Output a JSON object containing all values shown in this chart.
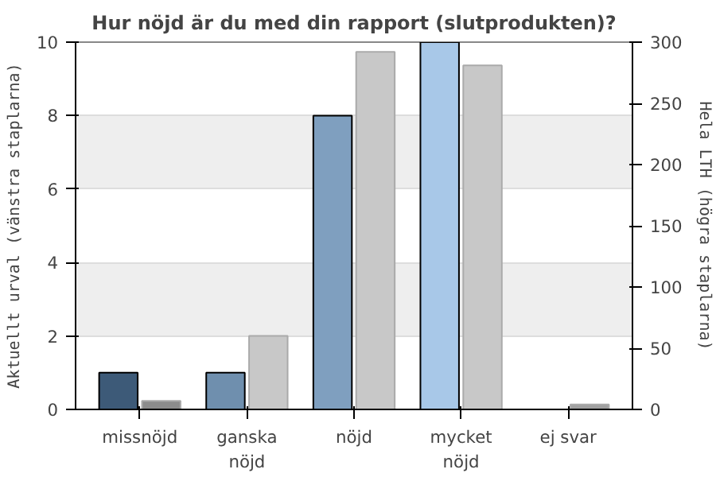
{
  "chart_data": {
    "type": "bar",
    "title": "Hur nöjd är du med din rapport (slutprodukten)?",
    "ylabel": "Aktuellt urval (vänstra staplarna)",
    "y2label": "Hela LTH (högra staplarna)",
    "categories": [
      "missnöjd",
      "ganska\nnöjd",
      "nöjd",
      "mycket\nnöjd",
      "ej svar"
    ],
    "series": [
      {
        "colors": [
          "#3d5a78",
          "#6f8fae",
          "#7f9fbf",
          "#a8c8e8",
          "#a8c8e8"
        ],
        "values": [
          1,
          1,
          8,
          10,
          null
        ]
      },
      {
        "axis": "y2",
        "colors": [
          "#8c8c8c",
          "#c8c8c8",
          "#c8c8c8",
          "#c8c8c8",
          "#a0a0a0"
        ],
        "values": [
          7,
          60,
          292,
          281,
          4
        ]
      }
    ],
    "ylim": [
      0,
      10
    ],
    "yticks": [
      0,
      2,
      4,
      6,
      8,
      10
    ],
    "y2lim": [
      0,
      300
    ],
    "y2ticks": [
      0,
      50,
      100,
      150,
      200,
      250,
      300
    ],
    "grid": "y"
  }
}
